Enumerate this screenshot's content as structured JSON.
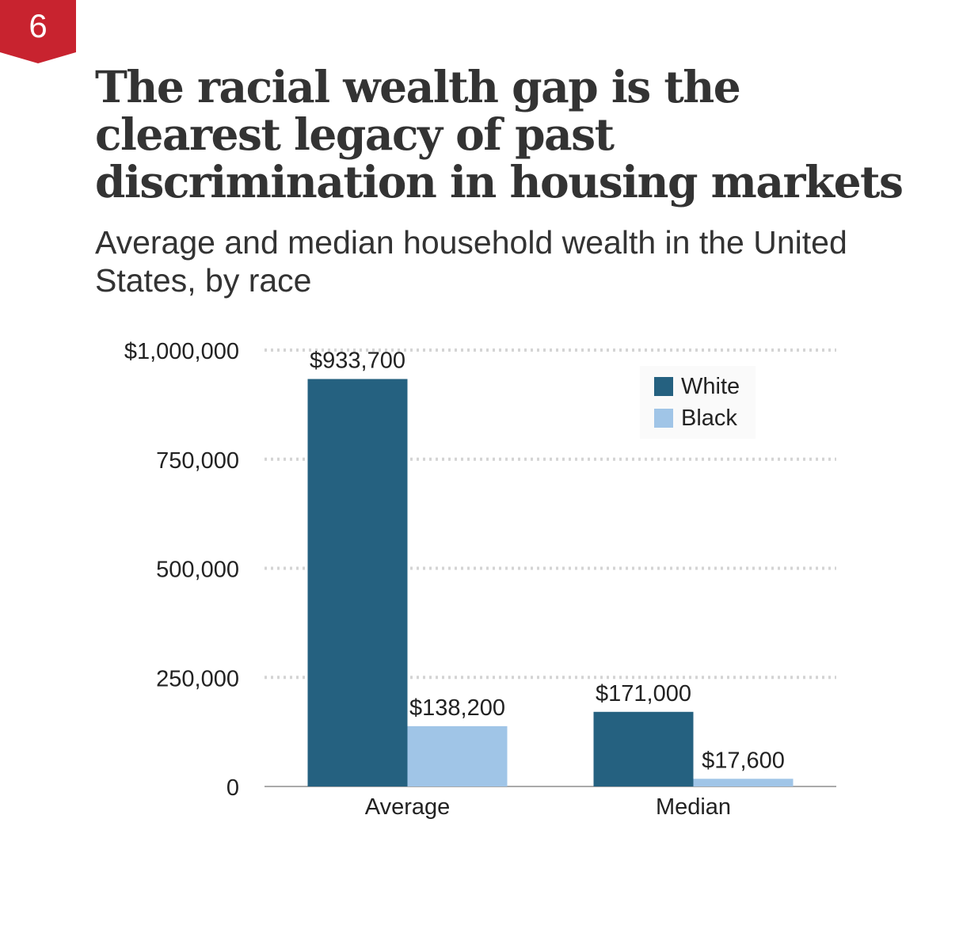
{
  "badge": {
    "number": "6",
    "color": "#C8232F"
  },
  "title": "The racial wealth gap is the clearest legacy of past discrimination in housing markets",
  "subtitle": "Average and median household wealth in the United States, by race",
  "chart_data": {
    "type": "bar",
    "categories": [
      "Average",
      "Median"
    ],
    "series": [
      {
        "name": "White",
        "color": "#256180",
        "values": [
          933700,
          171000
        ],
        "labels": [
          "$933,700",
          "$171,000"
        ]
      },
      {
        "name": "Black",
        "color": "#A0C5E7",
        "values": [
          138200,
          17600
        ],
        "labels": [
          "$138,200",
          "$17,600"
        ]
      }
    ],
    "ylim": [
      0,
      1000000
    ],
    "yticks": [
      {
        "value": 0,
        "label": "0"
      },
      {
        "value": 250000,
        "label": "250,000"
      },
      {
        "value": 500000,
        "label": "500,000"
      },
      {
        "value": 750000,
        "label": "750,000"
      },
      {
        "value": 1000000,
        "label": "$1,000,000"
      }
    ],
    "grid": "dotted horizontal",
    "legend_position": "top-right"
  }
}
